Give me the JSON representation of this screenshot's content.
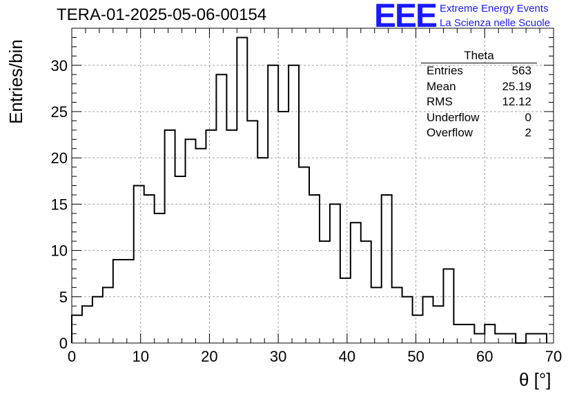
{
  "header": {
    "run_title": "TERA-01-2025-05-06-00154",
    "logo_text": "EEE",
    "logo_line1": "Extreme Energy Events",
    "logo_line2": "La Scienza nelle Scuole"
  },
  "stats_box": {
    "name": "Theta",
    "rows": [
      {
        "label": "Entries",
        "value": "563"
      },
      {
        "label": "Mean",
        "value": "25.19"
      },
      {
        "label": "RMS",
        "value": "12.12"
      },
      {
        "label": "Underflow",
        "value": "0"
      },
      {
        "label": "Overflow",
        "value": "2"
      }
    ]
  },
  "chart_data": {
    "type": "bar",
    "style": "step-histogram",
    "title": "TERA-01-2025-05-06-00154",
    "xlabel": "θ [°]",
    "ylabel": "Entries/bin",
    "xlim": [
      0,
      70
    ],
    "ylim": [
      0,
      34
    ],
    "xticks": [
      0,
      10,
      20,
      30,
      40,
      50,
      60,
      70
    ],
    "yticks": [
      0,
      5,
      10,
      15,
      20,
      25,
      30
    ],
    "grid": true,
    "bin_width": 1.5,
    "bin_start": 0,
    "values": [
      3,
      4,
      5,
      6,
      9,
      9,
      17,
      16,
      14,
      23,
      18,
      22,
      21,
      23,
      29,
      23,
      33,
      24,
      20,
      30,
      25,
      30,
      19,
      16,
      11,
      15,
      7,
      13,
      11,
      6,
      16,
      6,
      5,
      3,
      5,
      4,
      8,
      2,
      2,
      1,
      2,
      1,
      1,
      0,
      1,
      1
    ],
    "colors": {
      "line": "#000000",
      "grid": "#a0a0a0",
      "logo": "#1a1aff"
    }
  }
}
